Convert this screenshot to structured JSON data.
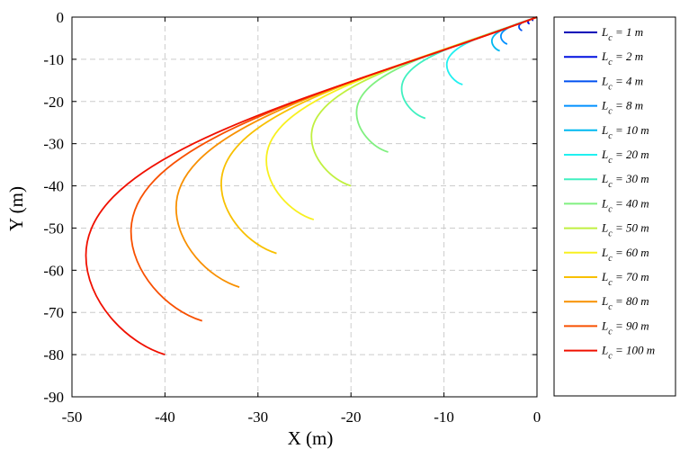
{
  "chart_data": {
    "type": "line",
    "title": "",
    "xlabel": "X (m)",
    "ylabel": "Y (m)",
    "xlim": [
      -50,
      0
    ],
    "ylim": [
      -90,
      0
    ],
    "xticks": [
      "-50",
      "-40",
      "-30",
      "-20",
      "-10",
      "0"
    ],
    "yticks": [
      "0",
      "-10",
      "-20",
      "-30",
      "-40",
      "-50",
      "-60",
      "-70",
      "-80",
      "-90"
    ],
    "grid": true,
    "legend_position": "outside-right",
    "series": [
      {
        "name": "L",
        "sub": "c",
        "suffix": " = 1 m",
        "color": "#0000b8",
        "apex": [
          -0.49,
          -0.56
        ],
        "end": [
          -0.4,
          -0.8
        ]
      },
      {
        "name": "L",
        "sub": "c",
        "suffix": " = 2 m",
        "color": "#0010e0",
        "apex": [
          -0.97,
          -1.13
        ],
        "end": [
          -0.8,
          -1.6
        ]
      },
      {
        "name": "L",
        "sub": "c",
        "suffix": " = 4 m",
        "color": "#0050f0",
        "apex": [
          -1.94,
          -2.26
        ],
        "end": [
          -1.6,
          -3.2
        ]
      },
      {
        "name": "L",
        "sub": "c",
        "suffix": " = 8 m",
        "color": "#0090ff",
        "apex": [
          -3.88,
          -4.52
        ],
        "end": [
          -3.2,
          -6.4
        ]
      },
      {
        "name": "L",
        "sub": "c",
        "suffix": " = 10 m",
        "color": "#00b8f0",
        "apex": [
          -4.85,
          -5.65
        ],
        "end": [
          -4.0,
          -8.0
        ]
      },
      {
        "name": "L",
        "sub": "c",
        "suffix": " = 20 m",
        "color": "#20f0f0",
        "apex": [
          -9.7,
          -11.3
        ],
        "end": [
          -8.0,
          -16.0
        ]
      },
      {
        "name": "L",
        "sub": "c",
        "suffix": " = 30 m",
        "color": "#40f0c0",
        "apex": [
          -14.55,
          -16.95
        ],
        "end": [
          -12.0,
          -24.0
        ]
      },
      {
        "name": "L",
        "sub": "c",
        "suffix": " = 40 m",
        "color": "#80f080",
        "apex": [
          -19.4,
          -22.6
        ],
        "end": [
          -16.0,
          -32.0
        ]
      },
      {
        "name": "L",
        "sub": "c",
        "suffix": " = 50 m",
        "color": "#c0f040",
        "apex": [
          -24.25,
          -28.25
        ],
        "end": [
          -20.0,
          -40.0
        ]
      },
      {
        "name": "L",
        "sub": "c",
        "suffix": " = 60 m",
        "color": "#f8f020",
        "apex": [
          -29.1,
          -33.9
        ],
        "end": [
          -24.0,
          -48.0
        ]
      },
      {
        "name": "L",
        "sub": "c",
        "suffix": " = 70 m",
        "color": "#f8c000",
        "apex": [
          -33.95,
          -39.55
        ],
        "end": [
          -28.0,
          -56.0
        ]
      },
      {
        "name": "L",
        "sub": "c",
        "suffix": " = 80 m",
        "color": "#f89000",
        "apex": [
          -38.8,
          -45.2
        ],
        "end": [
          -32.0,
          -64.0
        ]
      },
      {
        "name": "L",
        "sub": "c",
        "suffix": " = 90 m",
        "color": "#f85000",
        "apex": [
          -43.65,
          -50.85
        ],
        "end": [
          -36.0,
          -72.0
        ]
      },
      {
        "name": "L",
        "sub": "c",
        "suffix": " = 100 m",
        "color": "#f01000",
        "apex": [
          -48.5,
          -56.5
        ],
        "end": [
          -40.0,
          -80.0
        ]
      }
    ]
  }
}
